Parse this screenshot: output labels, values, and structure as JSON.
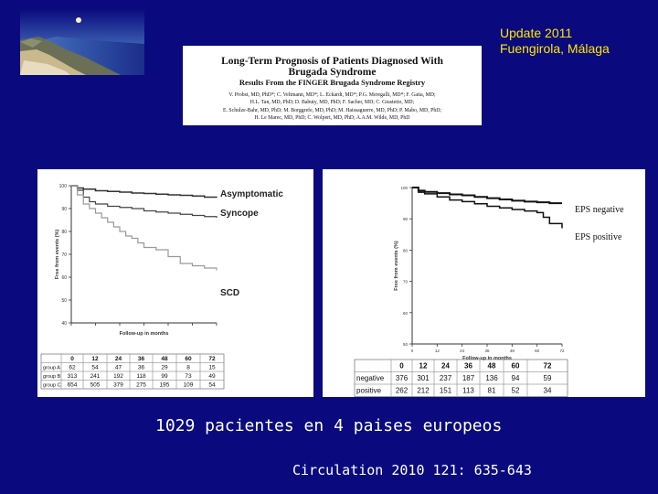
{
  "header": {
    "update_line1": "Update 2011",
    "update_line2": "Fuengirola, Málaga"
  },
  "paper": {
    "title_line1": "Long-Term Prognosis of Patients Diagnosed With",
    "title_line2": "Brugada Syndrome",
    "subtitle": "Results From the FINGER Brugada Syndrome Registry",
    "authors": [
      "V. Probst, MD, PhD*; C. Veltmann, MD*; L. Eckardt, MD*; P.G. Meregalli, MD*; F. Gaita, MD;",
      "H.L. Tan, MD, PhD; D. Babuty, MD, PhD; F. Sacher, MD; C. Giustetto, MD;",
      "E. Schulze-Bahr, MD, PhD; M. Borggrefe, MD, PhD; M. Haissaguerre, MD, PhD; P. Mabo, MD, PhD;",
      "H. Le Marec, MD, PhD; C. Wolpert, MD, PhD; A.A.M. Wilde, MD, PhD"
    ]
  },
  "colors": {
    "background": "#0a0a7e",
    "update_text": "#ffe700"
  },
  "chart_data": [
    {
      "type": "line",
      "xlabel": "Follow-up in months",
      "ylabel": "Free from events (%)",
      "xlim": [
        0,
        72
      ],
      "ylim": [
        40,
        100
      ],
      "yticks": [
        "100",
        "90",
        "80",
        "70",
        "60",
        "50",
        "40"
      ],
      "series": [
        {
          "name": "Asymptomatic",
          "x": [
            0,
            3,
            6,
            12,
            18,
            24,
            30,
            36,
            42,
            48,
            54,
            60,
            66,
            72
          ],
          "y": [
            100,
            99,
            98.5,
            97.8,
            97.5,
            97.2,
            96.8,
            96.6,
            96.3,
            96,
            95.8,
            95.5,
            95,
            94.8
          ]
        },
        {
          "name": "Syncope",
          "x": [
            0,
            3,
            6,
            9,
            12,
            18,
            24,
            30,
            36,
            42,
            48,
            54,
            60,
            66,
            72
          ],
          "y": [
            100,
            98,
            95,
            93,
            92,
            91,
            90.5,
            90,
            89,
            88.5,
            88,
            87.5,
            87,
            86.5,
            86
          ]
        },
        {
          "name": "SCD",
          "x": [
            0,
            3,
            6,
            9,
            12,
            15,
            18,
            21,
            24,
            27,
            30,
            33,
            36,
            42,
            48,
            54,
            60,
            66,
            72
          ],
          "y": [
            100,
            96,
            92,
            90,
            88,
            86,
            84,
            82,
            80,
            78,
            77,
            75,
            73,
            72,
            69,
            66,
            65,
            64,
            63
          ]
        }
      ],
      "risk_table": {
        "header": [
          "0",
          "12",
          "24",
          "36",
          "48",
          "60",
          "72"
        ],
        "rows": [
          {
            "label": "group A",
            "values": [
              "62",
              "54",
              "47",
              "36",
              "29",
              "8",
              "15"
            ]
          },
          {
            "label": "group B",
            "values": [
              "313",
              "241",
              "192",
              "118",
              "99",
              "73",
              "49"
            ]
          },
          {
            "label": "group C",
            "values": [
              "654",
              "505",
              "379",
              "275",
              "195",
              "109",
              "54"
            ]
          }
        ]
      }
    },
    {
      "type": "line",
      "xlabel": "Follow-up in months",
      "ylabel": "Free from events (%)",
      "xlim": [
        0,
        72
      ],
      "ylim": [
        50,
        100
      ],
      "yticks": [
        "100",
        "90",
        "80",
        "70",
        "60",
        "50"
      ],
      "xticks": [
        "0",
        "12",
        "24",
        "36",
        "48",
        "60",
        "72"
      ],
      "series": [
        {
          "name": "EPS negative",
          "x": [
            0,
            3,
            6,
            12,
            18,
            24,
            30,
            36,
            42,
            48,
            54,
            60,
            66,
            72
          ],
          "y": [
            100,
            99,
            98.6,
            98.2,
            97.8,
            97.5,
            97,
            96.6,
            96.2,
            95.8,
            95.5,
            95.3,
            95,
            95
          ]
        },
        {
          "name": "EPS positive",
          "x": [
            0,
            3,
            6,
            12,
            18,
            24,
            30,
            36,
            42,
            48,
            54,
            60,
            63,
            66,
            72
          ],
          "y": [
            100,
            98.5,
            98,
            97,
            96,
            95.5,
            94.8,
            94,
            93.5,
            93,
            92.5,
            92,
            90.5,
            88.5,
            87
          ]
        }
      ],
      "risk_table": {
        "header": [
          "0",
          "12",
          "24",
          "36",
          "48",
          "60",
          "72"
        ],
        "rows": [
          {
            "label": "negative",
            "values": [
              "376",
              "301",
              "237",
              "187",
              "136",
              "94",
              "59"
            ]
          },
          {
            "label": "positive",
            "values": [
              "262",
              "212",
              "151",
              "113",
              "81",
              "52",
              "34"
            ]
          }
        ]
      }
    }
  ],
  "captions": {
    "main": "1029 pacientes en 4 paises europeos",
    "citation": "Circulation 2010 121: 635-643"
  }
}
